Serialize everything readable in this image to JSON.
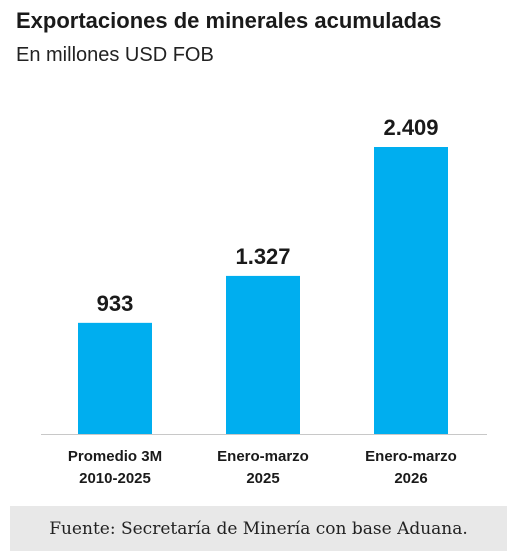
{
  "header": {
    "title": "Exportaciones de minerales acumuladas",
    "subtitle": "En millones USD FOB"
  },
  "footer": {
    "source": "Fuente: Secretaría de Minería con base Aduana."
  },
  "chart_data": {
    "type": "bar",
    "title": "Exportaciones de minerales acumuladas",
    "subtitle": "En millones USD FOB",
    "categories": [
      [
        "Promedio 3M",
        "2010-2025"
      ],
      [
        "Enero-marzo",
        "2025"
      ],
      [
        "Enero-marzo",
        "2026"
      ]
    ],
    "values": [
      933,
      1327,
      2409
    ],
    "value_labels": [
      "933",
      "1.327",
      "2.409"
    ],
    "xlabel": "",
    "ylabel": "",
    "ylim": [
      0,
      2409
    ],
    "grid": false,
    "legend": "none",
    "colors": {
      "bar": "#00aeef",
      "axis": "#c8c8c8",
      "label": "#1a1a1a"
    }
  }
}
